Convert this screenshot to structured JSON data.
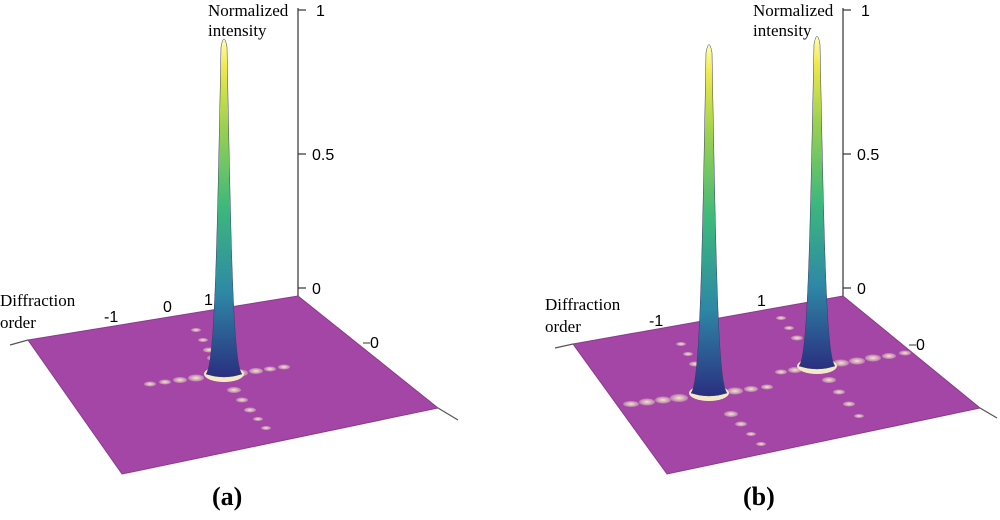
{
  "chart_data": [
    {
      "type": "surface3d",
      "panel_label": "(a)",
      "z_axis_label": [
        "Normalized",
        "intensity"
      ],
      "x_axis_label": [
        "Diffraction",
        "order"
      ],
      "z_ticks": [
        "0",
        "0.5",
        "1"
      ],
      "x_ticks": [
        "-1",
        "0",
        "1"
      ],
      "y_ticks": [
        "0"
      ],
      "zlim": [
        0,
        1
      ],
      "peaks": [
        {
          "diffraction_order": 1,
          "normalized_intensity": 0.91
        }
      ],
      "surface_color": "#a446a6"
    },
    {
      "type": "surface3d",
      "panel_label": "(b)",
      "z_axis_label": [
        "Normalized",
        "intensity"
      ],
      "x_axis_label": [
        "Diffraction",
        "order"
      ],
      "z_ticks": [
        "0",
        "0.5",
        "1"
      ],
      "x_ticks": [
        "-1",
        "1"
      ],
      "y_ticks": [
        "0"
      ],
      "zlim": [
        0,
        1
      ],
      "peaks": [
        {
          "diffraction_order": -1,
          "normalized_intensity": 0.89
        },
        {
          "diffraction_order": 1,
          "normalized_intensity": 0.92
        }
      ],
      "surface_color": "#a446a6"
    }
  ]
}
